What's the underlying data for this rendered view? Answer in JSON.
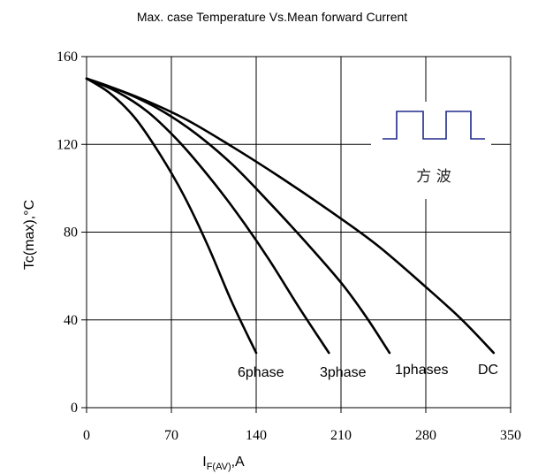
{
  "chart_data": {
    "type": "line",
    "title": "Max. case Temperature Vs.Mean forward Current",
    "xlabel": {
      "main": "I",
      "sub": "F(AV)",
      "suffix": ",A"
    },
    "ylabel": "Tc(max),°C",
    "xlim": [
      0,
      350
    ],
    "ylim": [
      0,
      160
    ],
    "x_ticks": [
      0,
      70,
      140,
      210,
      280,
      350
    ],
    "y_ticks": [
      0,
      40,
      80,
      120,
      160
    ],
    "x_tick_labels": [
      "0",
      "70",
      "140",
      "210",
      "280",
      "350"
    ],
    "y_tick_labels": [
      "0",
      "40",
      "80",
      "120",
      "160"
    ],
    "grid": true,
    "series": [
      {
        "name": "6phase",
        "points": [
          [
            0,
            150
          ],
          [
            20,
            143
          ],
          [
            40,
            132
          ],
          [
            60,
            116
          ],
          [
            80,
            97
          ],
          [
            100,
            74
          ],
          [
            120,
            48
          ],
          [
            140,
            25
          ]
        ]
      },
      {
        "name": "3phase",
        "points": [
          [
            0,
            150
          ],
          [
            25,
            144
          ],
          [
            50,
            135
          ],
          [
            75,
            122
          ],
          [
            100,
            106
          ],
          [
            125,
            88
          ],
          [
            150,
            68
          ],
          [
            175,
            46
          ],
          [
            200,
            25
          ]
        ]
      },
      {
        "name": "1phases",
        "points": [
          [
            0,
            150
          ],
          [
            30,
            144
          ],
          [
            60,
            136
          ],
          [
            90,
            125
          ],
          [
            120,
            111
          ],
          [
            150,
            94
          ],
          [
            180,
            76
          ],
          [
            210,
            57
          ],
          [
            230,
            42
          ],
          [
            250,
            25
          ]
        ]
      },
      {
        "name": "DC",
        "points": [
          [
            0,
            150
          ],
          [
            40,
            142
          ],
          [
            80,
            132
          ],
          [
            120,
            119
          ],
          [
            160,
            105
          ],
          [
            200,
            90
          ],
          [
            240,
            74
          ],
          [
            280,
            55
          ],
          [
            310,
            40
          ],
          [
            336,
            25
          ]
        ]
      }
    ],
    "inset": {
      "label": "方 波"
    }
  }
}
